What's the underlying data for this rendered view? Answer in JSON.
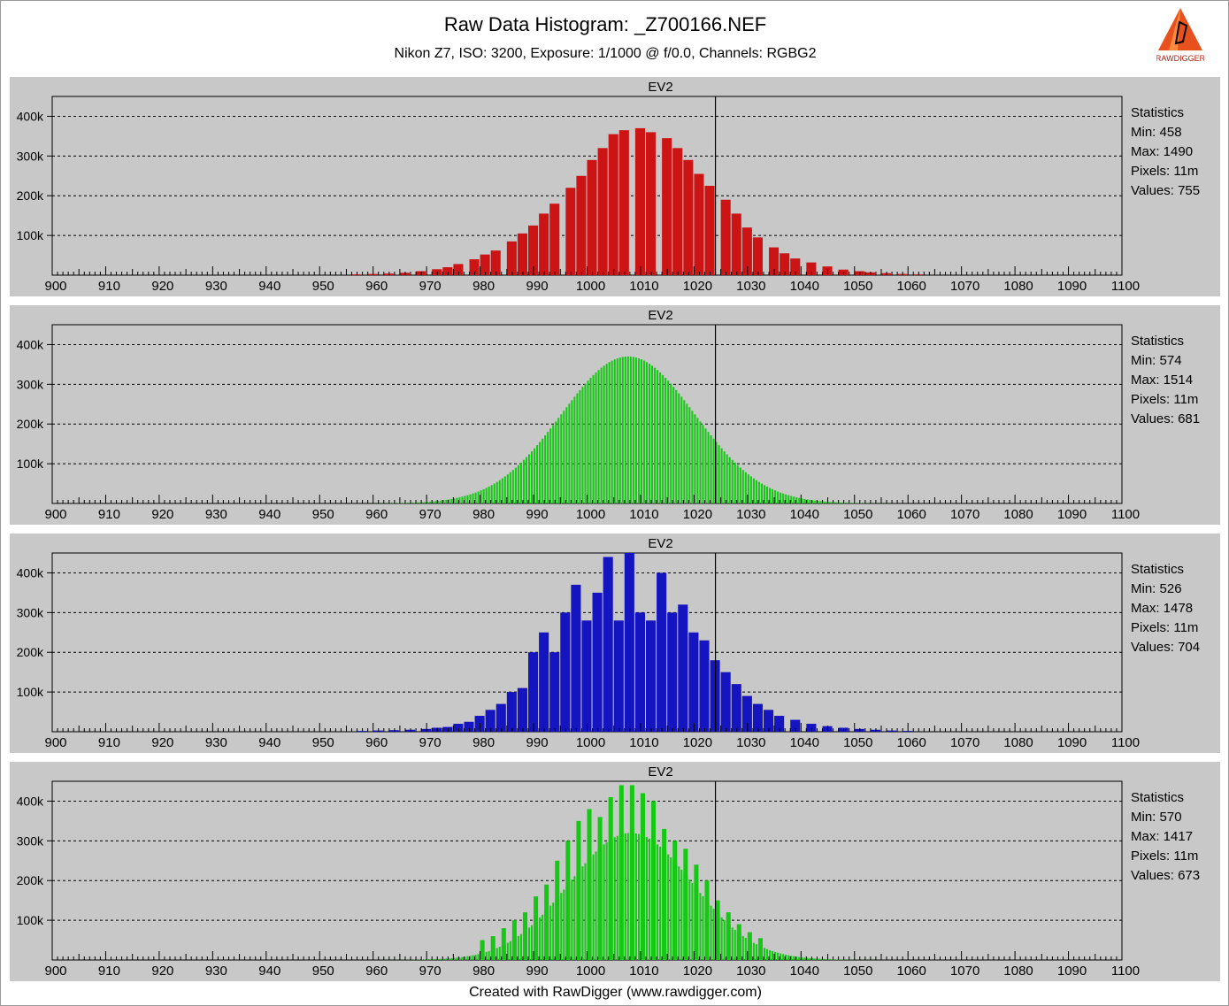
{
  "header": {
    "title": "Raw Data Histogram: _Z700166.NEF",
    "subtitle": "Nikon Z7, ISO: 3200, Exposure: 1/1000 @ f/0.0, Channels: RGBG2",
    "logo_text": "RAWDIGGER"
  },
  "footer": {
    "text": "Created with RawDigger (www.rawdigger.com)"
  },
  "colors": {
    "panel_bg": "#c8c8c8",
    "plot_bg": "#c8c8c8",
    "grid": "#000000"
  },
  "chart_data": [
    {
      "type": "bar",
      "channel": "R",
      "color": "#cc1414",
      "label": "EV2",
      "marker_x": 1024,
      "xlim": [
        900,
        1100
      ],
      "ylim": [
        0,
        450000
      ],
      "xticks": [
        "900",
        "910",
        "920",
        "930",
        "940",
        "950",
        "960",
        "970",
        "980",
        "990",
        "1000",
        "1010",
        "1020",
        "1030",
        "1040",
        "1050",
        "1060",
        "1070",
        "1080",
        "1090",
        "1100"
      ],
      "yticks": [
        "100k",
        "200k",
        "300k",
        "400k"
      ],
      "stats": {
        "title": "Statistics",
        "min": "Min: 458",
        "max": "Max: 1490",
        "pixels": "Pixels: 11m",
        "values": "Values: 755"
      },
      "bins": [
        [
          956,
          2000
        ],
        [
          959,
          3000
        ],
        [
          962,
          4000
        ],
        [
          965,
          6000
        ],
        [
          968,
          10000
        ],
        [
          971,
          15000
        ],
        [
          973,
          20000
        ],
        [
          975,
          28000
        ],
        [
          978,
          40000
        ],
        [
          980,
          52000
        ],
        [
          982,
          62000
        ],
        [
          985,
          85000
        ],
        [
          987,
          105000
        ],
        [
          989,
          125000
        ],
        [
          991,
          155000
        ],
        [
          993,
          180000
        ],
        [
          996,
          220000
        ],
        [
          998,
          250000
        ],
        [
          1000,
          290000
        ],
        [
          1002,
          320000
        ],
        [
          1004,
          355000
        ],
        [
          1006,
          365000
        ],
        [
          1009,
          370000
        ],
        [
          1011,
          360000
        ],
        [
          1014,
          345000
        ],
        [
          1016,
          320000
        ],
        [
          1018,
          290000
        ],
        [
          1020,
          255000
        ],
        [
          1022,
          225000
        ],
        [
          1025,
          190000
        ],
        [
          1027,
          155000
        ],
        [
          1029,
          120000
        ],
        [
          1031,
          95000
        ],
        [
          1034,
          70000
        ],
        [
          1036,
          55000
        ],
        [
          1038,
          42000
        ],
        [
          1041,
          32000
        ],
        [
          1044,
          22000
        ],
        [
          1047,
          14000
        ],
        [
          1050,
          10000
        ],
        [
          1052,
          7000
        ],
        [
          1055,
          5000
        ],
        [
          1058,
          3000
        ],
        [
          1061,
          2000
        ]
      ]
    },
    {
      "type": "bar",
      "channel": "G",
      "color": "#14c814",
      "label": "EV2",
      "marker_x": 1024,
      "xlim": [
        900,
        1100
      ],
      "ylim": [
        0,
        450000
      ],
      "xticks": [
        "900",
        "910",
        "920",
        "930",
        "940",
        "950",
        "960",
        "970",
        "980",
        "990",
        "1000",
        "1010",
        "1020",
        "1030",
        "1040",
        "1050",
        "1060",
        "1070",
        "1080",
        "1090",
        "1100"
      ],
      "yticks": [
        "100k",
        "200k",
        "300k",
        "400k"
      ],
      "stats": {
        "title": "Statistics",
        "min": "Min: 574",
        "max": "Max: 1514",
        "pixels": "Pixels: 11m",
        "values": "Values: 681"
      },
      "gauss": {
        "mean": 1007.5,
        "sigma": 12.5,
        "peak": 370000,
        "from": 960,
        "to": 1058
      }
    },
    {
      "type": "bar",
      "channel": "B",
      "color": "#1414c0",
      "label": "EV2",
      "marker_x": 1024,
      "xlim": [
        900,
        1100
      ],
      "ylim": [
        0,
        450000
      ],
      "xticks": [
        "900",
        "910",
        "920",
        "930",
        "940",
        "950",
        "960",
        "970",
        "980",
        "990",
        "1000",
        "1010",
        "1020",
        "1030",
        "1040",
        "1050",
        "1060",
        "1070",
        "1080",
        "1090",
        "1100"
      ],
      "yticks": [
        "100k",
        "200k",
        "300k",
        "400k"
      ],
      "stats": {
        "title": "Statistics",
        "min": "Min: 526",
        "max": "Max: 1478",
        "pixels": "Pixels: 11m",
        "values": "Values: 704"
      },
      "bins": [
        [
          957,
          2000
        ],
        [
          960,
          3000
        ],
        [
          963,
          4000
        ],
        [
          966,
          5000
        ],
        [
          969,
          7000
        ],
        [
          971,
          10000
        ],
        [
          973,
          12000
        ],
        [
          975,
          20000
        ],
        [
          977,
          25000
        ],
        [
          979,
          40000
        ],
        [
          981,
          55000
        ],
        [
          983,
          70000
        ],
        [
          985,
          100000
        ],
        [
          987,
          110000
        ],
        [
          989,
          200000
        ],
        [
          991,
          250000
        ],
        [
          993,
          200000
        ],
        [
          995,
          300000
        ],
        [
          997,
          370000
        ],
        [
          999,
          280000
        ],
        [
          1001,
          350000
        ],
        [
          1003,
          440000
        ],
        [
          1005,
          280000
        ],
        [
          1007,
          460000
        ],
        [
          1009,
          300000
        ],
        [
          1011,
          280000
        ],
        [
          1013,
          400000
        ],
        [
          1015,
          300000
        ],
        [
          1017,
          320000
        ],
        [
          1019,
          250000
        ],
        [
          1021,
          230000
        ],
        [
          1023,
          180000
        ],
        [
          1025,
          150000
        ],
        [
          1027,
          120000
        ],
        [
          1029,
          90000
        ],
        [
          1031,
          70000
        ],
        [
          1033,
          55000
        ],
        [
          1035,
          40000
        ],
        [
          1038,
          30000
        ],
        [
          1041,
          20000
        ],
        [
          1044,
          14000
        ],
        [
          1047,
          10000
        ],
        [
          1050,
          7000
        ],
        [
          1053,
          5000
        ],
        [
          1056,
          3000
        ],
        [
          1059,
          2000
        ]
      ]
    },
    {
      "type": "bar",
      "channel": "G2",
      "color": "#14c814",
      "label": "EV2",
      "marker_x": 1024,
      "xlim": [
        900,
        1100
      ],
      "ylim": [
        0,
        450000
      ],
      "xticks": [
        "900",
        "910",
        "920",
        "930",
        "940",
        "950",
        "960",
        "970",
        "980",
        "990",
        "1000",
        "1010",
        "1020",
        "1030",
        "1040",
        "1050",
        "1060",
        "1070",
        "1080",
        "1090",
        "1100"
      ],
      "yticks": [
        "100k",
        "200k",
        "300k",
        "400k"
      ],
      "stats": {
        "title": "Statistics",
        "min": "Min: 570",
        "max": "Max: 1417",
        "pixels": "Pixels: 11m",
        "values": "Values: 673"
      },
      "gauss": {
        "mean": 1008,
        "sigma": 11.5,
        "peak": 320000,
        "from": 960,
        "to": 1058
      },
      "spikes": [
        [
          980,
          50000
        ],
        [
          982,
          60000
        ],
        [
          984,
          80000
        ],
        [
          986,
          100000
        ],
        [
          988,
          120000
        ],
        [
          990,
          160000
        ],
        [
          992,
          190000
        ],
        [
          994,
          250000
        ],
        [
          996,
          300000
        ],
        [
          998,
          350000
        ],
        [
          1000,
          380000
        ],
        [
          1002,
          360000
        ],
        [
          1004,
          410000
        ],
        [
          1006,
          440000
        ],
        [
          1008,
          440000
        ],
        [
          1010,
          420000
        ],
        [
          1012,
          400000
        ],
        [
          1014,
          330000
        ],
        [
          1016,
          300000
        ],
        [
          1018,
          280000
        ],
        [
          1020,
          240000
        ],
        [
          1022,
          200000
        ],
        [
          1024,
          150000
        ],
        [
          1026,
          120000
        ],
        [
          1028,
          90000
        ],
        [
          1030,
          70000
        ],
        [
          1032,
          55000
        ]
      ]
    }
  ]
}
